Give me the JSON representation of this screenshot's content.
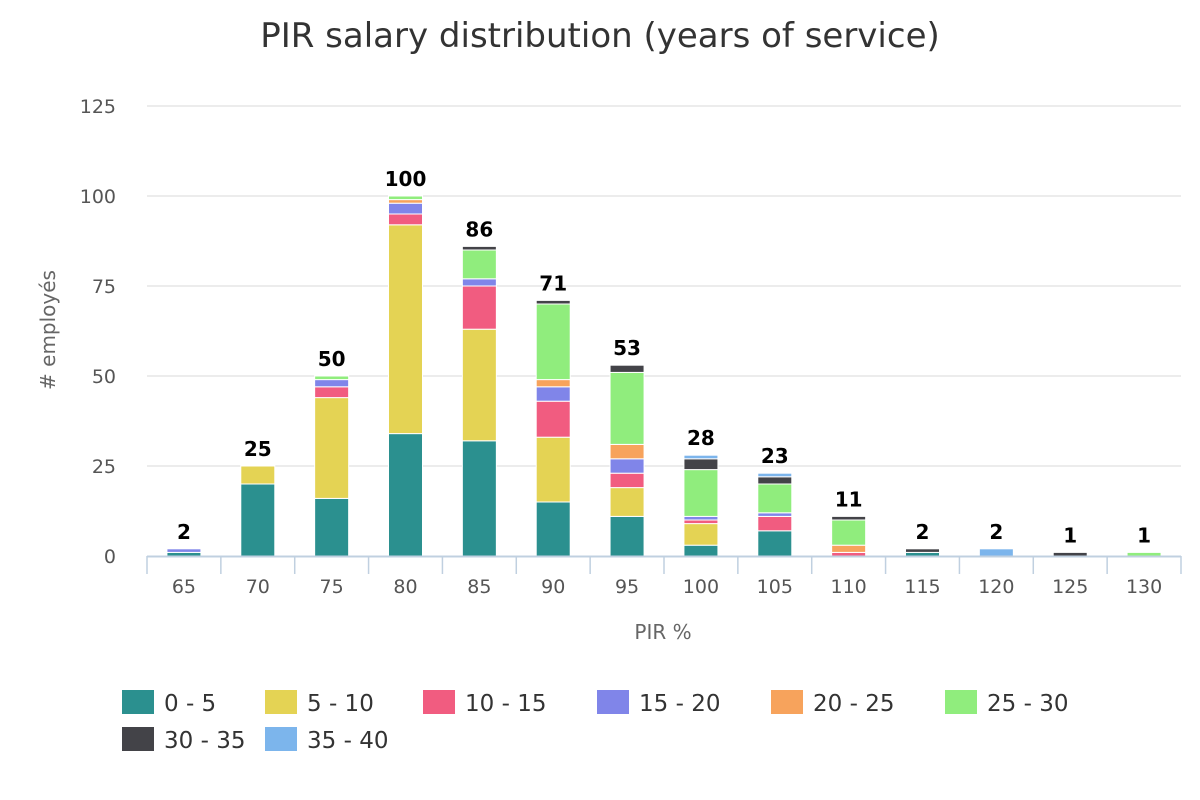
{
  "chart_data": {
    "type": "bar",
    "stacked": true,
    "title": "PIR salary distribution (years of service)",
    "xlabel": "PIR %",
    "ylabel": "# employés",
    "ylim": [
      0,
      125
    ],
    "yticks": [
      "0",
      "25",
      "50",
      "75",
      "100",
      "125"
    ],
    "grid": true,
    "legend_position": "bottom",
    "categories": [
      "65",
      "70",
      "75",
      "80",
      "85",
      "90",
      "95",
      "100",
      "105",
      "110",
      "115",
      "120",
      "125",
      "130"
    ],
    "totals": [
      "2",
      "25",
      "50",
      "100",
      "86",
      "71",
      "53",
      "28",
      "23",
      "11",
      "2",
      "2",
      "1",
      "1"
    ],
    "series": [
      {
        "name": "0 - 5",
        "color": "#2b908f",
        "values": [
          1,
          20,
          16,
          34,
          32,
          15,
          11,
          3,
          7,
          0,
          1,
          0,
          0,
          0
        ]
      },
      {
        "name": "5 - 10",
        "color": "#e4d354",
        "values": [
          0,
          5,
          28,
          58,
          31,
          18,
          8,
          6,
          0,
          0,
          0,
          0,
          0,
          0
        ]
      },
      {
        "name": "10 - 15",
        "color": "#f15c80",
        "values": [
          0,
          0,
          3,
          3,
          12,
          10,
          4,
          1,
          4,
          1,
          0,
          0,
          0,
          0
        ]
      },
      {
        "name": "15 - 20",
        "color": "#8085e9",
        "values": [
          1,
          0,
          2,
          3,
          2,
          4,
          4,
          1,
          1,
          0,
          0,
          0,
          0,
          0
        ]
      },
      {
        "name": "20 - 25",
        "color": "#f7a35c",
        "values": [
          0,
          0,
          0,
          1,
          0,
          2,
          4,
          0,
          0,
          2,
          0,
          0,
          0,
          0
        ]
      },
      {
        "name": "25 - 30",
        "color": "#90ed7d",
        "values": [
          0,
          0,
          1,
          1,
          8,
          21,
          20,
          13,
          8,
          7,
          0,
          0,
          0,
          1
        ]
      },
      {
        "name": "30 - 35",
        "color": "#434348",
        "values": [
          0,
          0,
          0,
          0,
          1,
          1,
          2,
          3,
          2,
          1,
          1,
          0,
          1,
          0
        ]
      },
      {
        "name": "35 - 40",
        "color": "#7cb5ec",
        "values": [
          0,
          0,
          0,
          0,
          0,
          0,
          0,
          1,
          1,
          0,
          0,
          2,
          0,
          0
        ]
      }
    ]
  }
}
